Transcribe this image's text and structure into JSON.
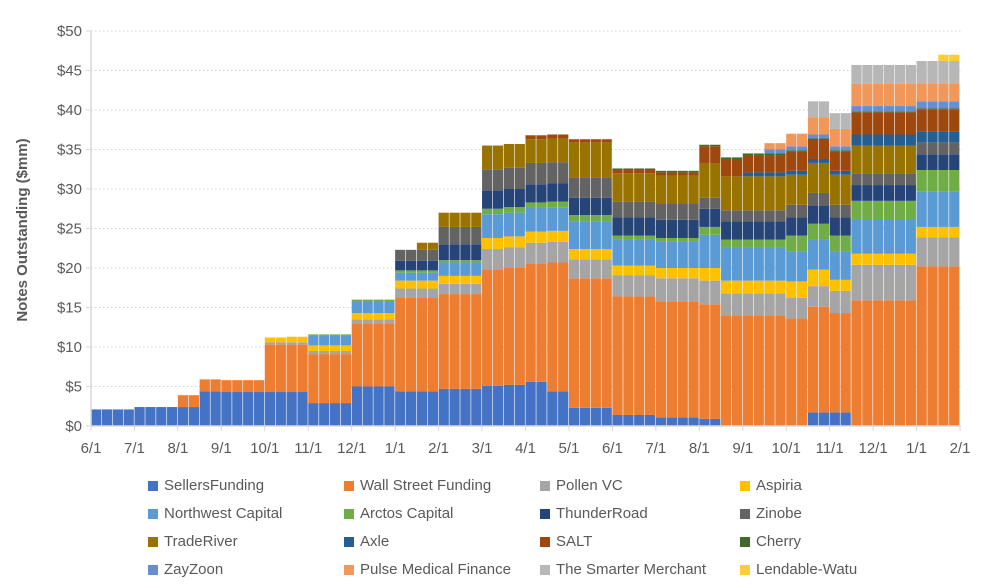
{
  "chart_data": {
    "type": "bar",
    "stacked": true,
    "title": "",
    "xlabel": "",
    "ylabel": "Notes Outstanding ($mm)",
    "ylim": [
      0,
      50
    ],
    "yticks": [
      0,
      5,
      10,
      15,
      20,
      25,
      30,
      35,
      40,
      45,
      50
    ],
    "ytick_labels": [
      "$0",
      "$5",
      "$10",
      "$15",
      "$20",
      "$25",
      "$30",
      "$35",
      "$40",
      "$45",
      "$50"
    ],
    "xtick_labels": [
      "6/1",
      "7/1",
      "8/1",
      "9/1",
      "10/1",
      "11/1",
      "12/1",
      "1/1",
      "2/1",
      "3/1",
      "4/1",
      "5/1",
      "6/1",
      "7/1",
      "8/1",
      "9/1",
      "10/1",
      "11/1",
      "12/1",
      "1/1",
      "2/1"
    ],
    "periods_per_month": 2,
    "grid": "horizontal-dotted",
    "legend_position": "bottom",
    "series": [
      {
        "name": "SellersFunding",
        "color": "#4472C4",
        "values": [
          2.1,
          2.1,
          2.4,
          2.4,
          2.4,
          4.4,
          4.3,
          4.3,
          4.3,
          4.3,
          2.9,
          2.9,
          5.0,
          5.0,
          4.4,
          4.4,
          4.7,
          4.7,
          5.1,
          5.2,
          5.6,
          4.4,
          2.3,
          2.3,
          1.4,
          1.4,
          1.1,
          1.1,
          0.9,
          0,
          0,
          0,
          0,
          1.7,
          1.7,
          0,
          0,
          0,
          0,
          0
        ]
      },
      {
        "name": "Wall Street Funding",
        "color": "#ED7D31",
        "values": [
          0,
          0,
          0,
          0,
          1.5,
          1.5,
          1.5,
          1.5,
          6.0,
          6.0,
          6.2,
          6.2,
          8.0,
          8.0,
          11.8,
          11.8,
          12.0,
          12.0,
          14.7,
          14.8,
          15.0,
          16.3,
          16.4,
          16.4,
          15.0,
          15.0,
          14.7,
          14.7,
          14.5,
          14.0,
          14.0,
          14.0,
          13.6,
          13.4,
          12.6,
          15.9,
          15.9,
          15.9,
          20.2,
          20.2
        ]
      },
      {
        "name": "Pollen VC",
        "color": "#A5A5A5",
        "values": [
          0,
          0,
          0,
          0,
          0,
          0,
          0,
          0,
          0.3,
          0.3,
          0.4,
          0.4,
          0.5,
          0.5,
          1.2,
          1.2,
          1.3,
          1.3,
          2.6,
          2.6,
          2.6,
          2.6,
          2.4,
          2.4,
          2.7,
          2.7,
          2.9,
          2.9,
          3.0,
          2.8,
          2.8,
          2.8,
          2.6,
          2.6,
          2.8,
          4.5,
          4.5,
          4.5,
          3.7,
          3.7
        ]
      },
      {
        "name": "Aspiria",
        "color": "#FFC000",
        "values": [
          0,
          0,
          0,
          0,
          0,
          0,
          0,
          0,
          0.6,
          0.7,
          0.7,
          0.7,
          0.8,
          0.8,
          1.0,
          1.0,
          1.0,
          1.0,
          1.4,
          1.4,
          1.4,
          1.4,
          1.3,
          1.3,
          1.2,
          1.2,
          1.3,
          1.3,
          1.6,
          1.6,
          1.6,
          1.6,
          2.1,
          2.1,
          1.4,
          1.4,
          1.4,
          1.4,
          1.3,
          1.3
        ]
      },
      {
        "name": "Northwest Capital",
        "color": "#5B9BD5",
        "values": [
          0,
          0,
          0,
          0,
          0,
          0,
          0,
          0,
          0,
          0,
          1.2,
          1.2,
          1.4,
          1.4,
          1.0,
          1.0,
          1.7,
          1.7,
          3.0,
          3.0,
          3.0,
          3.0,
          3.5,
          3.5,
          3.3,
          3.3,
          3.3,
          3.3,
          4.2,
          4.2,
          4.2,
          4.2,
          3.8,
          3.8,
          3.6,
          4.4,
          4.4,
          4.4,
          4.5,
          4.5
        ]
      },
      {
        "name": "Arctos Capital",
        "color": "#70AD47",
        "values": [
          0,
          0,
          0,
          0,
          0,
          0,
          0,
          0,
          0,
          0,
          0.2,
          0.2,
          0.3,
          0.3,
          0.3,
          0.3,
          0.3,
          0.3,
          0.7,
          0.7,
          0.7,
          0.7,
          0.8,
          0.8,
          0.5,
          0.5,
          0.5,
          0.5,
          1.0,
          1.0,
          1.0,
          1.0,
          2.0,
          2.0,
          2.0,
          2.3,
          2.3,
          2.3,
          2.7,
          2.7
        ]
      },
      {
        "name": "ThunderRoad",
        "color": "#264478",
        "values": [
          0,
          0,
          0,
          0,
          0,
          0,
          0,
          0,
          0,
          0,
          0,
          0,
          0,
          0,
          1.2,
          1.2,
          2.0,
          2.0,
          2.3,
          2.3,
          2.3,
          2.3,
          2.2,
          2.2,
          2.3,
          2.3,
          2.3,
          2.3,
          2.3,
          2.3,
          2.3,
          2.3,
          2.3,
          2.3,
          2.3,
          2.0,
          2.0,
          2.0,
          2.0,
          2.0
        ]
      },
      {
        "name": "Zinobe",
        "color": "#636363",
        "values": [
          0,
          0,
          0,
          0,
          0,
          0,
          0,
          0,
          0,
          0,
          0,
          0,
          0,
          0,
          1.4,
          1.4,
          2.2,
          2.2,
          2.7,
          2.7,
          2.7,
          2.7,
          2.5,
          2.5,
          2.0,
          2.0,
          2.0,
          2.0,
          1.4,
          1.4,
          1.4,
          1.4,
          1.6,
          1.6,
          1.6,
          1.5,
          1.5,
          1.5,
          1.5,
          1.5
        ]
      },
      {
        "name": "TradeRiver",
        "color": "#997300",
        "values": [
          0,
          0,
          0,
          0,
          0,
          0,
          0,
          0,
          0,
          0,
          0,
          0,
          0,
          0,
          0,
          0.9,
          1.8,
          1.8,
          3.0,
          3.0,
          3.0,
          3.0,
          4.5,
          4.5,
          3.6,
          3.6,
          3.6,
          3.6,
          4.3,
          4.3,
          4.3,
          4.3,
          3.8,
          3.8,
          3.8,
          3.5,
          3.5,
          3.5,
          0,
          0
        ]
      },
      {
        "name": "Axle",
        "color": "#255E91",
        "values": [
          0,
          0,
          0,
          0,
          0,
          0,
          0,
          0,
          0,
          0,
          0,
          0,
          0,
          0,
          0,
          0,
          0,
          0,
          0,
          0,
          0,
          0,
          0,
          0,
          0,
          0,
          0,
          0,
          0,
          0,
          0.5,
          0.5,
          0.5,
          0.5,
          0.5,
          1.4,
          1.4,
          1.4,
          1.4,
          1.4
        ]
      },
      {
        "name": "SALT",
        "color": "#9E480E",
        "values": [
          0,
          0,
          0,
          0,
          0,
          0,
          0,
          0,
          0,
          0,
          0,
          0,
          0,
          0,
          0,
          0,
          0,
          0,
          0,
          0,
          0.5,
          0.5,
          0.4,
          0.4,
          0.4,
          0.4,
          0.4,
          0.4,
          2.2,
          2.2,
          2.2,
          2.2,
          2.4,
          2.4,
          2.4,
          2.8,
          2.8,
          2.8,
          2.8,
          2.8
        ]
      },
      {
        "name": "Cherry",
        "color": "#43682B",
        "values": [
          0,
          0,
          0,
          0,
          0,
          0,
          0,
          0,
          0,
          0,
          0,
          0,
          0,
          0,
          0,
          0,
          0,
          0,
          0,
          0,
          0,
          0,
          0,
          0,
          0.2,
          0.2,
          0.2,
          0.2,
          0.2,
          0.2,
          0.2,
          0.2,
          0.2,
          0.2,
          0.2,
          0.1,
          0.1,
          0.1,
          0.1,
          0.1
        ]
      },
      {
        "name": "ZayZoon",
        "color": "#698ED0",
        "values": [
          0,
          0,
          0,
          0,
          0,
          0,
          0,
          0,
          0,
          0,
          0,
          0,
          0,
          0,
          0,
          0,
          0,
          0,
          0,
          0,
          0,
          0,
          0,
          0,
          0,
          0,
          0,
          0,
          0,
          0,
          0,
          0.5,
          0.5,
          0.5,
          0.5,
          0.7,
          0.7,
          0.7,
          0.9,
          0.9
        ]
      },
      {
        "name": "Pulse Medical Finance",
        "color": "#F1975A",
        "values": [
          0,
          0,
          0,
          0,
          0,
          0,
          0,
          0,
          0,
          0,
          0,
          0,
          0,
          0,
          0,
          0,
          0,
          0,
          0,
          0,
          0,
          0,
          0,
          0,
          0,
          0,
          0,
          0,
          0,
          0,
          0,
          0.8,
          1.6,
          2.2,
          2.2,
          2.8,
          2.8,
          2.8,
          2.3,
          2.3
        ]
      },
      {
        "name": "The Smarter Merchant",
        "color": "#B7B7B7",
        "values": [
          0,
          0,
          0,
          0,
          0,
          0,
          0,
          0,
          0,
          0,
          0,
          0,
          0,
          0,
          0,
          0,
          0,
          0,
          0,
          0,
          0,
          0,
          0,
          0,
          0,
          0,
          0,
          0,
          0,
          0,
          0,
          0,
          0,
          2.0,
          2.0,
          2.4,
          2.4,
          2.4,
          2.8,
          2.8
        ]
      },
      {
        "name": "Lendable-Watu",
        "color": "#FFCD33",
        "values": [
          0,
          0,
          0,
          0,
          0,
          0,
          0,
          0,
          0,
          0,
          0,
          0,
          0,
          0,
          0,
          0,
          0,
          0,
          0,
          0,
          0,
          0,
          0,
          0,
          0,
          0,
          0,
          0,
          0,
          0,
          0,
          0,
          0,
          0,
          0,
          0,
          0,
          0,
          0,
          0.8
        ]
      }
    ]
  }
}
